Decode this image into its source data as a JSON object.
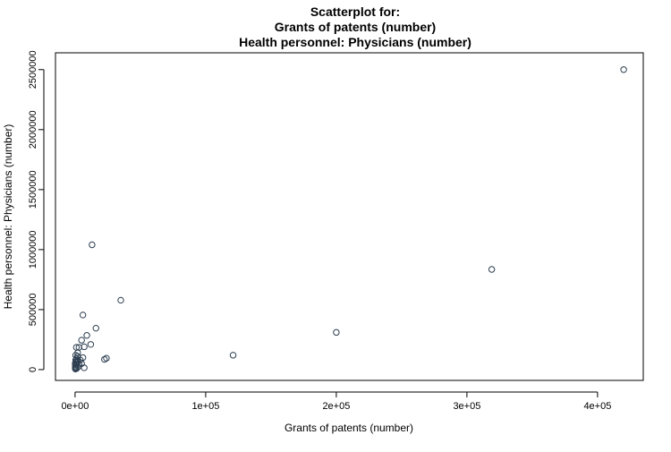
{
  "chart_data": {
    "type": "scatter",
    "title_lines": [
      "Scatterplot for:",
      "Grants of patents (number)",
      "Health personnel: Physicians (number)"
    ],
    "xlabel": "Grants of patents (number)",
    "ylabel": "Health personnel: Physicians (number)",
    "xlim": [
      -15000,
      435000
    ],
    "ylim": [
      -90000,
      2640000
    ],
    "x_ticks": [
      0,
      100000,
      200000,
      300000,
      400000
    ],
    "x_tick_labels": [
      "0e+00",
      "1e+05",
      "2e+05",
      "3e+05",
      "4e+05"
    ],
    "y_ticks": [
      0,
      500000,
      1000000,
      1500000,
      2000000,
      2500000
    ],
    "y_tick_labels": [
      "0",
      "500000",
      "1000000",
      "1500000",
      "2000000",
      "2500000"
    ],
    "grid": false,
    "marker_color": "#2c3e50",
    "points": [
      {
        "x": 420000,
        "y": 2500000
      },
      {
        "x": 319000,
        "y": 835000
      },
      {
        "x": 200000,
        "y": 310000
      },
      {
        "x": 121000,
        "y": 120000
      },
      {
        "x": 35000,
        "y": 578000
      },
      {
        "x": 13000,
        "y": 1040000
      },
      {
        "x": 16000,
        "y": 345000
      },
      {
        "x": 6000,
        "y": 455000
      },
      {
        "x": 9000,
        "y": 285000
      },
      {
        "x": 12000,
        "y": 210000
      },
      {
        "x": 5000,
        "y": 245000
      },
      {
        "x": 7000,
        "y": 190000
      },
      {
        "x": 24000,
        "y": 95000
      },
      {
        "x": 22500,
        "y": 85000
      },
      {
        "x": 1000,
        "y": 185000
      },
      {
        "x": 3000,
        "y": 185000
      },
      {
        "x": 2000,
        "y": 140000
      },
      {
        "x": 6000,
        "y": 100000
      },
      {
        "x": 4000,
        "y": 80000
      },
      {
        "x": 5000,
        "y": 50000
      },
      {
        "x": 3000,
        "y": 45000
      },
      {
        "x": 2000,
        "y": 70000
      },
      {
        "x": 7000,
        "y": 15000
      },
      {
        "x": 500,
        "y": 120000
      },
      {
        "x": 1000,
        "y": 90000
      },
      {
        "x": 500,
        "y": 80000
      },
      {
        "x": 1500,
        "y": 60000
      },
      {
        "x": 800,
        "y": 40000
      },
      {
        "x": 200,
        "y": 30000
      },
      {
        "x": 400,
        "y": 20000
      },
      {
        "x": 1200,
        "y": 10000
      },
      {
        "x": 300,
        "y": 5000
      },
      {
        "x": 100,
        "y": 50000
      },
      {
        "x": 2500,
        "y": 25000
      },
      {
        "x": 600,
        "y": 65000
      },
      {
        "x": 1800,
        "y": 110000
      },
      {
        "x": 150,
        "y": 12000
      }
    ]
  }
}
